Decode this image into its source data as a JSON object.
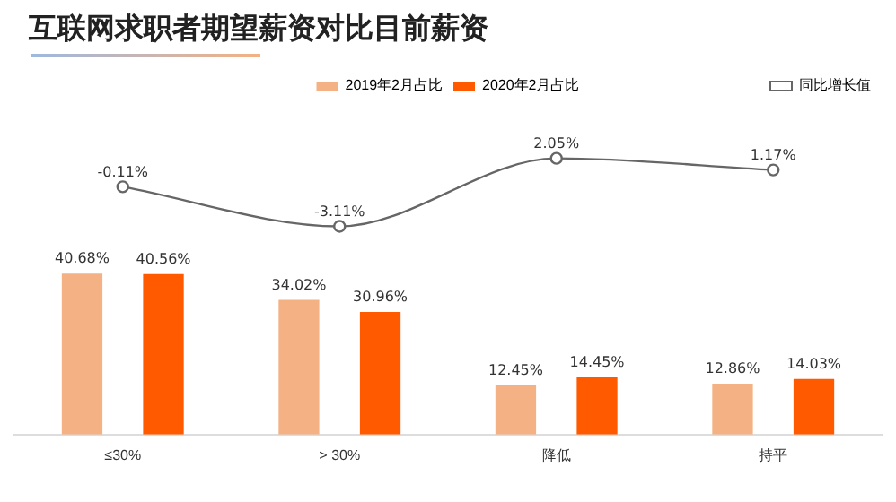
{
  "chart_data": [
    {
      "type": "line",
      "title": "互联网求职者期望薪资对比目前薪资",
      "categories": [
        null,
        null,
        null,
        null
      ],
      "series": [
        {
          "name": "同比增长值",
          "color": "#666666",
          "values": [
            -0.11,
            -3.11,
            2.05,
            1.17
          ],
          "value_labels": [
            "-0.11%",
            "-3.11%",
            "2.05%",
            "1.17%"
          ]
        }
      ],
      "marker": "circle",
      "tick_labels": false,
      "grid": false,
      "legend": "top right"
    },
    {
      "type": "bar",
      "categories": [
        "≤30%",
        "> 30%",
        "降低",
        "持平"
      ],
      "series": [
        {
          "name": "2019年2月占比",
          "color": "#f4b183",
          "values": [
            40.68,
            34.02,
            12.45,
            12.86
          ],
          "value_labels": [
            "40.68%",
            "34.02%",
            "12.45%",
            "12.86%"
          ]
        },
        {
          "name": "2020年2月占比",
          "color": "#ff5a00",
          "values": [
            40.56,
            30.96,
            14.45,
            14.03
          ],
          "value_labels": [
            "40.56%",
            "30.96%",
            "14.45%",
            "14.03%"
          ]
        }
      ],
      "tick_labels": "x",
      "grid": false,
      "legend": "top"
    }
  ]
}
